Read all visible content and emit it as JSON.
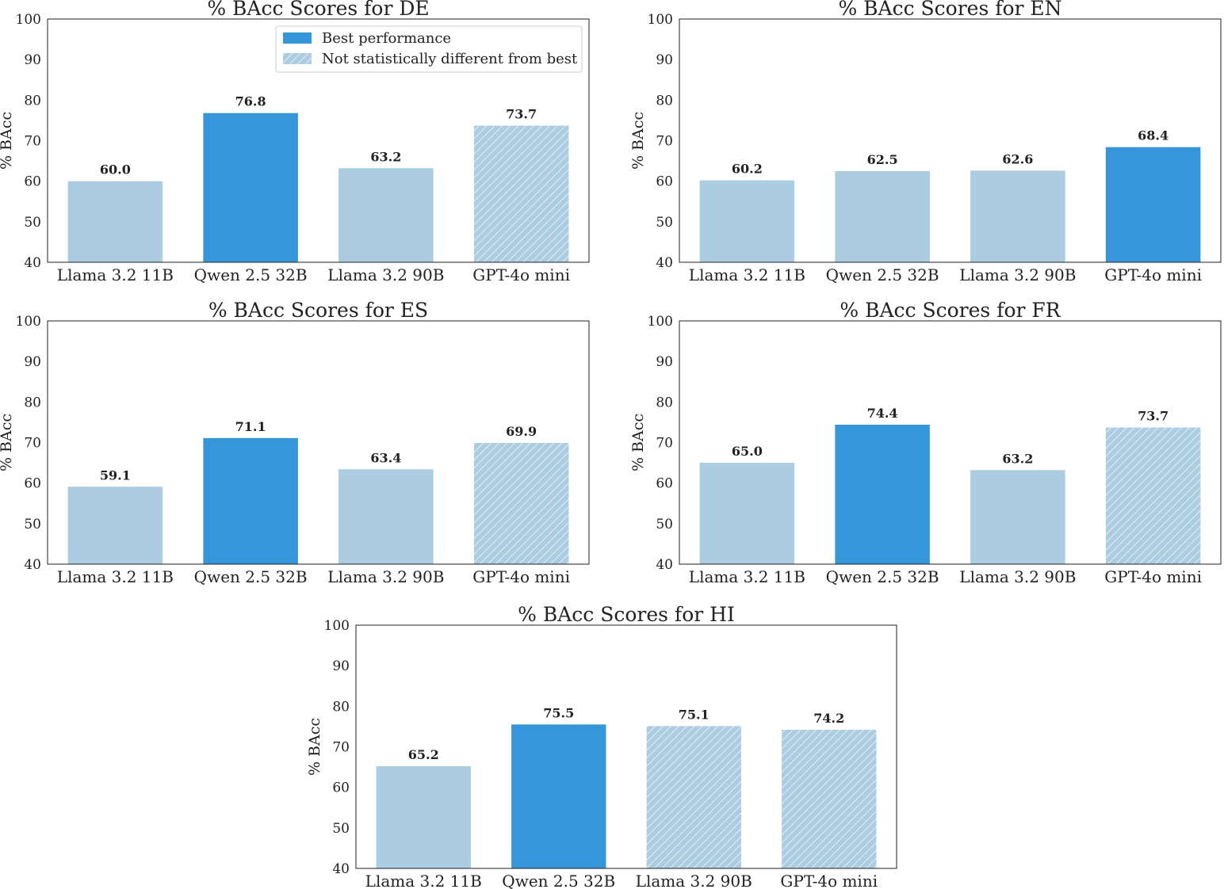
{
  "colors": {
    "best": "#3597d9",
    "regular": "#abcce1",
    "hatch_bg": "#abcce1",
    "hatch_line": "#e4eef6"
  },
  "legend": {
    "best_label": "Best performance",
    "not_diff_label": "Not statistically different from best"
  },
  "chart_data": [
    {
      "type": "bar",
      "title": "% BAcc Scores for DE",
      "ylabel": "% BAcc",
      "xlabel": "",
      "ylim": [
        40,
        100
      ],
      "yticks": [
        40,
        50,
        60,
        70,
        80,
        90,
        100
      ],
      "categories": [
        "Llama 3.2 11B",
        "Qwen 2.5 32B",
        "Llama 3.2 90B",
        "GPT-4o mini"
      ],
      "values": [
        60.0,
        76.8,
        63.2,
        73.7
      ],
      "labels": [
        "60.0",
        "76.8",
        "63.2",
        "73.7"
      ],
      "status": [
        "regular",
        "best",
        "regular",
        "not_diff"
      ],
      "legend": "upper-right"
    },
    {
      "type": "bar",
      "title": "% BAcc Scores for EN",
      "ylabel": "% BAcc",
      "xlabel": "",
      "ylim": [
        40,
        100
      ],
      "yticks": [
        40,
        50,
        60,
        70,
        80,
        90,
        100
      ],
      "categories": [
        "Llama 3.2 11B",
        "Qwen 2.5 32B",
        "Llama 3.2 90B",
        "GPT-4o mini"
      ],
      "values": [
        60.2,
        62.5,
        62.6,
        68.4
      ],
      "labels": [
        "60.2",
        "62.5",
        "62.6",
        "68.4"
      ],
      "status": [
        "regular",
        "regular",
        "regular",
        "best"
      ]
    },
    {
      "type": "bar",
      "title": "% BAcc Scores for ES",
      "ylabel": "% BAcc",
      "xlabel": "",
      "ylim": [
        40,
        100
      ],
      "yticks": [
        40,
        50,
        60,
        70,
        80,
        90,
        100
      ],
      "categories": [
        "Llama 3.2 11B",
        "Qwen 2.5 32B",
        "Llama 3.2 90B",
        "GPT-4o mini"
      ],
      "values": [
        59.1,
        71.1,
        63.4,
        69.9
      ],
      "labels": [
        "59.1",
        "71.1",
        "63.4",
        "69.9"
      ],
      "status": [
        "regular",
        "best",
        "regular",
        "not_diff"
      ]
    },
    {
      "type": "bar",
      "title": "% BAcc Scores for FR",
      "ylabel": "% BAcc",
      "xlabel": "",
      "ylim": [
        40,
        100
      ],
      "yticks": [
        40,
        50,
        60,
        70,
        80,
        90,
        100
      ],
      "categories": [
        "Llama 3.2 11B",
        "Qwen 2.5 32B",
        "Llama 3.2 90B",
        "GPT-4o mini"
      ],
      "values": [
        65.0,
        74.4,
        63.2,
        73.7
      ],
      "labels": [
        "65.0",
        "74.4",
        "63.2",
        "73.7"
      ],
      "status": [
        "regular",
        "best",
        "regular",
        "not_diff"
      ]
    },
    {
      "type": "bar",
      "title": "% BAcc Scores for HI",
      "ylabel": "% BAcc",
      "xlabel": "",
      "ylim": [
        40,
        100
      ],
      "yticks": [
        40,
        50,
        60,
        70,
        80,
        90,
        100
      ],
      "categories": [
        "Llama 3.2 11B",
        "Qwen 2.5 32B",
        "Llama 3.2 90B",
        "GPT-4o mini"
      ],
      "values": [
        65.2,
        75.5,
        75.1,
        74.2
      ],
      "labels": [
        "65.2",
        "75.5",
        "75.1",
        "74.2"
      ],
      "status": [
        "regular",
        "best",
        "not_diff",
        "not_diff"
      ]
    }
  ]
}
